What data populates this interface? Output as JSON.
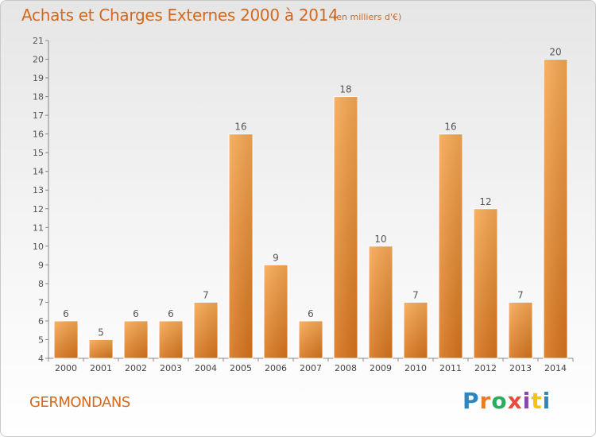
{
  "header": {
    "title": "Achats et Charges Externes 2000 à 2014",
    "subtitle": "(en milliers d'€)"
  },
  "footer": {
    "commune": "GERMONDANS",
    "brand": "Proxiti"
  },
  "colors": {
    "title": "#d2691e",
    "bar_top": "#f7a954",
    "bar_bottom": "#d7741c",
    "axis": "#888888",
    "grid": "#d0d0d0",
    "brand_letters": [
      "#2e86c1",
      "#e67e22",
      "#27ae60",
      "#e74c3c",
      "#8e44ad",
      "#f1c40f",
      "#2e86c1"
    ]
  },
  "chart_data": {
    "type": "bar",
    "title": "Achats et Charges Externes 2000 à 2014",
    "subtitle": "(en milliers d'€)",
    "categories": [
      "2000",
      "2001",
      "2002",
      "2003",
      "2004",
      "2005",
      "2006",
      "2007",
      "2008",
      "2009",
      "2010",
      "2011",
      "2012",
      "2013",
      "2014"
    ],
    "values": [
      6,
      5,
      6,
      6,
      7,
      16,
      9,
      6,
      18,
      10,
      7,
      16,
      12,
      7,
      20
    ],
    "ylim": [
      4,
      21
    ],
    "yticks": [
      4,
      5,
      6,
      7,
      8,
      9,
      10,
      11,
      12,
      13,
      14,
      15,
      16,
      17,
      18,
      19,
      20,
      21
    ],
    "grid": false,
    "data_labels": true
  }
}
